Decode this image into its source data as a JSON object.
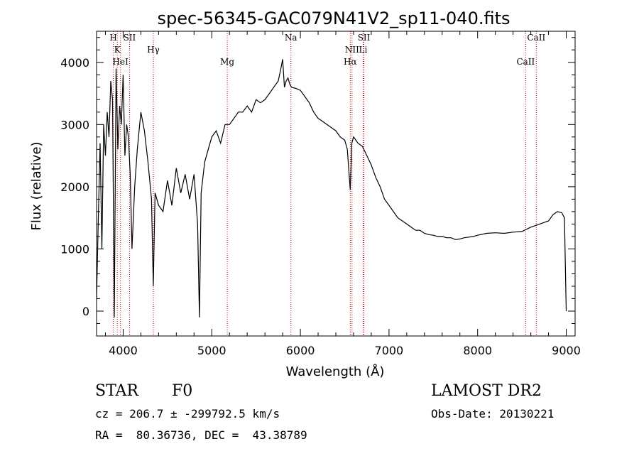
{
  "chart_data": {
    "type": "line",
    "title": "spec-56345-GAC079N41V2_sp11-040.fits",
    "xlabel": "Wavelength (Å)",
    "ylabel": "Flux (relative)",
    "xlim": [
      3700,
      9100
    ],
    "ylim": [
      -400,
      4500
    ],
    "x_ticks": [
      4000,
      5000,
      6000,
      7000,
      8000,
      9000
    ],
    "y_ticks": [
      0,
      1000,
      2000,
      3000,
      4000
    ],
    "grid": false,
    "line_color": "#000000",
    "marker_color": "#cc0000",
    "series": [
      {
        "x": [
          3700,
          3720,
          3740,
          3760,
          3780,
          3800,
          3820,
          3840,
          3860,
          3880,
          3900,
          3920,
          3940,
          3960,
          3980,
          4000,
          4020,
          4040,
          4060,
          4080,
          4100,
          4130,
          4160,
          4200,
          4240,
          4280,
          4320,
          4340,
          4360,
          4400,
          4450,
          4500,
          4550,
          4600,
          4650,
          4700,
          4750,
          4800,
          4840,
          4861,
          4880,
          4920,
          4960,
          5000,
          5050,
          5100,
          5150,
          5200,
          5250,
          5300,
          5350,
          5400,
          5450,
          5500,
          5550,
          5600,
          5650,
          5700,
          5750,
          5780,
          5800,
          5820,
          5840,
          5860,
          5880,
          5900,
          5950,
          6000,
          6050,
          6100,
          6150,
          6200,
          6250,
          6300,
          6350,
          6400,
          6450,
          6500,
          6530,
          6550,
          6563,
          6580,
          6600,
          6650,
          6700,
          6750,
          6800,
          6850,
          6900,
          6950,
          7000,
          7050,
          7100,
          7150,
          7200,
          7250,
          7300,
          7350,
          7400,
          7450,
          7500,
          7550,
          7600,
          7650,
          7700,
          7750,
          7800,
          7850,
          7900,
          7950,
          8000,
          8100,
          8200,
          8300,
          8400,
          8500,
          8600,
          8700,
          8800,
          8850,
          8900,
          8950,
          8980,
          9000
        ],
        "y": [
          200,
          1500,
          2700,
          1000,
          3000,
          2500,
          3200,
          2800,
          3700,
          3400,
          -100,
          3900,
          2600,
          3300,
          3000,
          3800,
          2500,
          3000,
          2800,
          2200,
          1000,
          2000,
          2600,
          3200,
          2900,
          2400,
          1800,
          400,
          1900,
          1700,
          1600,
          2100,
          1700,
          2300,
          1900,
          2200,
          1800,
          2200,
          1400,
          -100,
          1900,
          2400,
          2600,
          2800,
          2900,
          2700,
          3000,
          3000,
          3100,
          3200,
          3200,
          3300,
          3200,
          3400,
          3350,
          3400,
          3500,
          3600,
          3700,
          3900,
          4050,
          3600,
          3700,
          3750,
          3650,
          3600,
          3580,
          3550,
          3450,
          3350,
          3200,
          3100,
          3050,
          3000,
          2950,
          2900,
          2800,
          2750,
          2600,
          2200,
          1950,
          2700,
          2800,
          2700,
          2650,
          2500,
          2350,
          2150,
          2000,
          1800,
          1700,
          1600,
          1500,
          1450,
          1400,
          1350,
          1300,
          1300,
          1250,
          1230,
          1220,
          1200,
          1200,
          1180,
          1180,
          1150,
          1160,
          1180,
          1190,
          1200,
          1220,
          1250,
          1260,
          1250,
          1270,
          1280,
          1350,
          1400,
          1450,
          1550,
          1600,
          1580,
          1500,
          0
        ]
      }
    ],
    "lines": [
      {
        "label": "H",
        "x": 3889
      },
      {
        "label": "K",
        "x": 3934
      },
      {
        "label": "HeI",
        "x": 3970
      },
      {
        "label": "SII",
        "x": 4072
      },
      {
        "label": "Hγ",
        "x": 4341
      },
      {
        "label": "Mg",
        "x": 5175
      },
      {
        "label": "Na",
        "x": 5893
      },
      {
        "label": "NII",
        "x": 6583
      },
      {
        "label": "Hα",
        "x": 6563
      },
      {
        "label": "SII",
        "x": 6717
      },
      {
        "label": "Li",
        "x": 6708
      },
      {
        "label": "CaII",
        "x": 8542
      },
      {
        "label": "CaII",
        "x": 8662
      }
    ]
  },
  "info": {
    "class": "STAR",
    "subclass": "F0",
    "survey": "LAMOST DR2",
    "cz_line": "cz = 206.7 ± -299792.5 km/s",
    "obs_date": "Obs-Date: 20130221",
    "radec": "RA =  80.36736, DEC =  43.38789"
  }
}
